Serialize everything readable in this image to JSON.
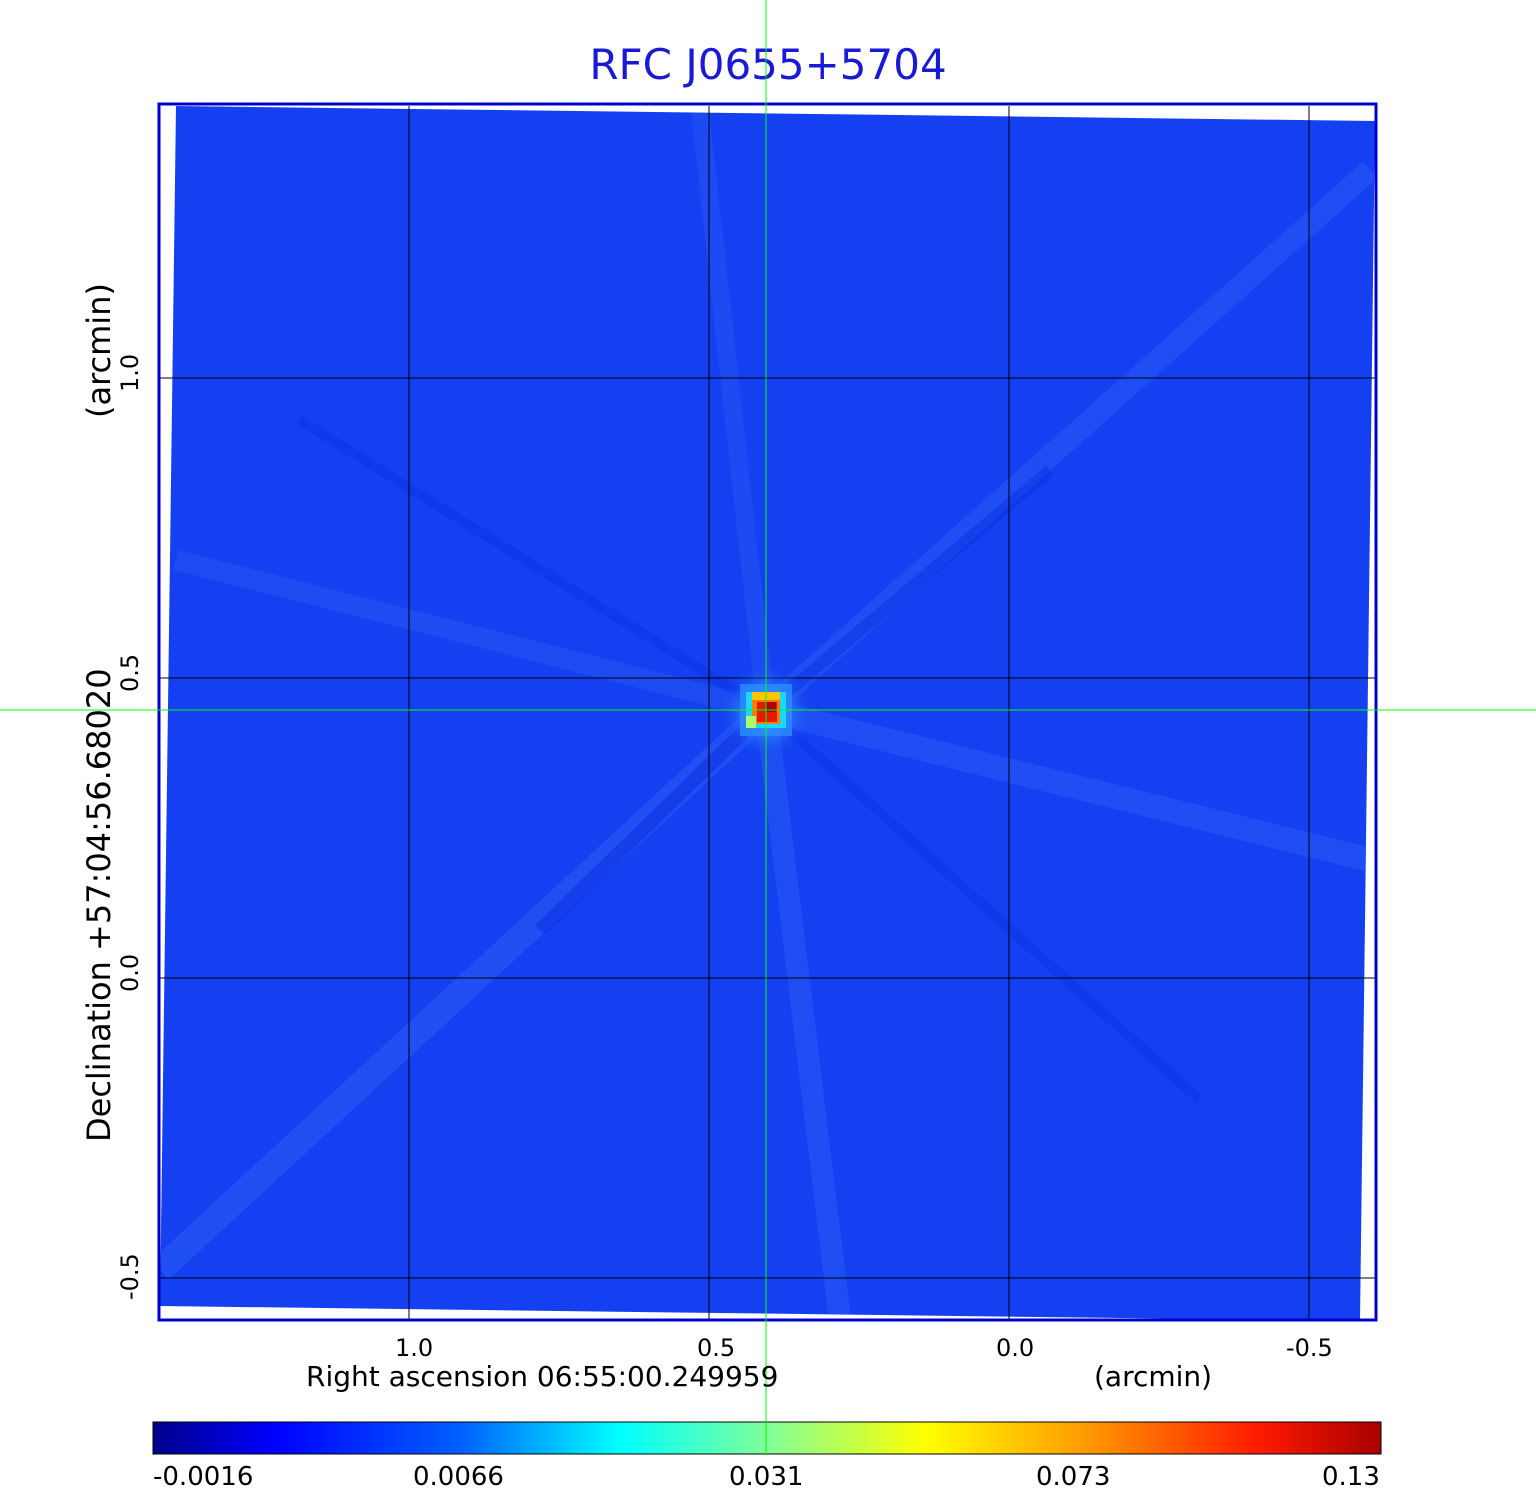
{
  "title": "RFC J0655+5704",
  "x_axis": {
    "label": "Right ascension  06:55:00.249959",
    "unit": "(arcmin)",
    "ticks": [
      "1.0",
      "0.5",
      "0.0",
      "-0.5"
    ],
    "values": [
      1.0,
      0.5,
      0.0,
      -0.5
    ]
  },
  "y_axis": {
    "label": "Declination  +57:04:56.68020",
    "unit": "(arcmin)",
    "ticks": [
      "1.0",
      "0.5",
      "0.0",
      "-0.5"
    ],
    "values": [
      1.0,
      0.5,
      0.0,
      -0.5
    ]
  },
  "colorbar": {
    "ticks": [
      "-0.0016",
      "0.0066",
      "0.031",
      "0.073",
      "0.13"
    ],
    "colormap": "jet"
  },
  "colors": {
    "title": "#1a1ad6",
    "frame": "#0000cc",
    "background_map": "#1440f2",
    "crosshair": "#00ff00",
    "grid": "#000000"
  },
  "chart_data": {
    "type": "heatmap",
    "title": "RFC J0655+5704",
    "xlabel": "Right ascension  06:55:00.249959 (arcmin)",
    "ylabel": "Declination  +57:04:56.68020 (arcmin)",
    "xlim": [
      1.41,
      -0.61
    ],
    "ylim": [
      -0.57,
      1.46
    ],
    "grid": true,
    "source_peak": {
      "x": 0.4,
      "y": 0.45,
      "value": 0.13
    },
    "crosshair": {
      "x": 0.4,
      "y": 0.45
    },
    "value_range": [
      -0.0016,
      0.13
    ]
  }
}
